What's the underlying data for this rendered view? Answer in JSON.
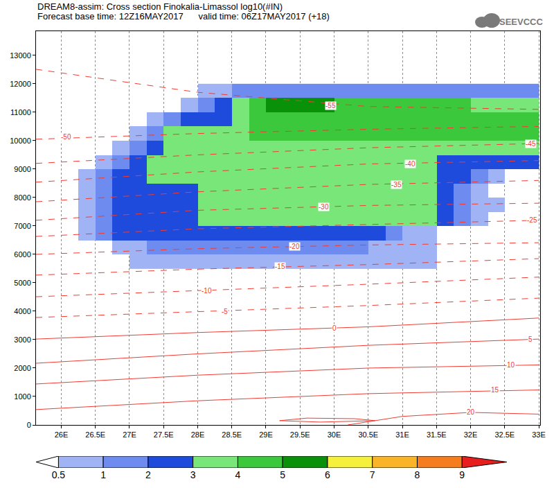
{
  "chart_data": {
    "type": "heatmap",
    "title": "DREAM8-assim: Cross section Finokalia-Limassol log10(#IN)",
    "subtitle": "Forecast base time: 12Z16MAY2017      valid time: 06Z17MAY2017 (+18)",
    "logo": "SEEVCCC",
    "xlim": [
      25.63,
      33.02
    ],
    "ylim": [
      0,
      13850
    ],
    "xticks": [
      {
        "value": 26,
        "label": "26E"
      },
      {
        "value": 26.5,
        "label": "26.5E"
      },
      {
        "value": 27,
        "label": "27E"
      },
      {
        "value": 27.5,
        "label": "27.5E"
      },
      {
        "value": 28,
        "label": "28E"
      },
      {
        "value": 28.5,
        "label": "28.5E"
      },
      {
        "value": 29,
        "label": "29E"
      },
      {
        "value": 29.5,
        "label": "29.5E"
      },
      {
        "value": 30,
        "label": "30E"
      },
      {
        "value": 30.5,
        "label": "30.5E"
      },
      {
        "value": 31,
        "label": "31E"
      },
      {
        "value": 31.5,
        "label": "31.5E"
      },
      {
        "value": 32,
        "label": "32E"
      },
      {
        "value": 32.5,
        "label": "32.5E"
      },
      {
        "value": 33,
        "label": "33E"
      }
    ],
    "yticks": [
      0,
      1000,
      2000,
      3000,
      4000,
      5000,
      6000,
      7000,
      8000,
      9000,
      10000,
      11000,
      12000,
      13000
    ],
    "grid": "x",
    "colorbar_ticks": [
      0.5,
      1,
      2,
      3,
      4,
      5,
      6,
      7,
      8,
      9
    ],
    "colors": [
      "#ffffff",
      "#a0b4f5",
      "#6e8cf0",
      "#1e4bdc",
      "#78e678",
      "#3cc83c",
      "#0a910a",
      "#f5f03c",
      "#fab428",
      "#f57d1e",
      "#e61e1e"
    ],
    "x": [
      26.125,
      26.375,
      26.625,
      26.875,
      27.125,
      27.375,
      27.625,
      27.875,
      28.125,
      28.375,
      28.625,
      28.875,
      29.125,
      29.375,
      29.625,
      29.875,
      30.125,
      30.375,
      30.625,
      30.875,
      31.125,
      31.375,
      31.625,
      31.875,
      32.125,
      32.375,
      32.625,
      32.875
    ],
    "y": [
      5750,
      6250,
      6750,
      7250,
      7750,
      8250,
      8750,
      9250,
      9750,
      10250,
      10750,
      11250,
      11750
    ],
    "cells": [
      [
        null,
        null,
        null,
        null,
        0.7,
        0.7,
        0.7,
        0.7,
        0.7,
        0.7,
        0.7,
        0.7,
        0.7,
        0.7,
        0.7,
        0.7,
        0.7,
        0.7,
        0.7,
        0.7,
        0.7,
        0.7,
        null,
        null,
        null,
        null,
        null,
        null
      ],
      [
        null,
        null,
        null,
        0.7,
        0.7,
        1.5,
        1.5,
        1.5,
        1.5,
        1.5,
        1.5,
        1.5,
        1.5,
        1.5,
        1.5,
        1.5,
        1.5,
        1.5,
        0.7,
        0.7,
        0.7,
        0.7,
        null,
        null,
        null,
        null,
        null,
        null
      ],
      [
        null,
        0.7,
        1.5,
        2.5,
        2.5,
        2.5,
        2.5,
        2.5,
        2.5,
        2.5,
        2.5,
        2.5,
        2.5,
        2.5,
        2.5,
        2.5,
        2.5,
        2.5,
        2.5,
        1.5,
        0.7,
        0.7,
        null,
        null,
        null,
        null,
        null,
        null
      ],
      [
        null,
        0.7,
        1.5,
        2.5,
        2.5,
        2.5,
        2.5,
        2.5,
        3.5,
        3.5,
        3.5,
        3.5,
        3.5,
        3.5,
        3.5,
        3.5,
        3.5,
        3.5,
        3.5,
        3.5,
        3.5,
        3.5,
        2.5,
        1.5,
        0.7,
        null,
        null,
        null
      ],
      [
        null,
        0.7,
        1.5,
        2.5,
        2.5,
        2.5,
        2.5,
        2.5,
        3.5,
        3.5,
        3.5,
        3.5,
        3.5,
        3.5,
        3.5,
        3.5,
        3.5,
        3.5,
        3.5,
        3.5,
        3.5,
        3.5,
        2.5,
        1.5,
        0.7,
        0.7,
        null,
        null
      ],
      [
        null,
        0.7,
        1.5,
        2.5,
        2.5,
        2.5,
        2.5,
        2.5,
        3.5,
        3.5,
        3.5,
        3.5,
        3.5,
        3.5,
        3.5,
        3.5,
        3.5,
        3.5,
        3.5,
        3.5,
        3.5,
        3.5,
        2.5,
        1.5,
        0.7,
        null,
        null,
        null
      ],
      [
        null,
        0.7,
        1.5,
        2.5,
        2.5,
        3.5,
        3.5,
        3.5,
        3.5,
        3.5,
        3.5,
        3.5,
        3.5,
        3.5,
        3.5,
        3.5,
        3.5,
        3.5,
        3.5,
        3.5,
        3.5,
        3.5,
        2.5,
        2.5,
        1.5,
        0.7,
        null,
        null
      ],
      [
        null,
        null,
        0.7,
        1.5,
        2.5,
        3.5,
        3.5,
        3.5,
        3.5,
        3.5,
        3.5,
        3.5,
        3.5,
        3.5,
        3.5,
        3.5,
        3.5,
        3.5,
        3.5,
        3.5,
        3.5,
        3.5,
        2.5,
        2.5,
        2.5,
        2.5,
        2.5,
        2.5
      ],
      [
        null,
        null,
        null,
        0.7,
        1.5,
        2.5,
        3.5,
        3.5,
        3.5,
        3.5,
        3.5,
        3.5,
        3.5,
        3.5,
        3.5,
        3.5,
        3.5,
        3.5,
        3.5,
        3.5,
        3.5,
        3.5,
        3.5,
        3.5,
        3.5,
        3.5,
        3.5,
        3.5
      ],
      [
        null,
        null,
        null,
        null,
        0.7,
        1.5,
        3.5,
        3.5,
        3.5,
        3.5,
        3.5,
        4.5,
        4.5,
        4.5,
        4.5,
        4.5,
        4.5,
        4.5,
        4.5,
        4.5,
        4.5,
        4.5,
        4.5,
        4.5,
        4.5,
        4.5,
        4.5,
        4.5
      ],
      [
        null,
        null,
        null,
        null,
        null,
        0.7,
        1.5,
        2.5,
        2.5,
        2.5,
        3.5,
        4.5,
        4.5,
        4.5,
        4.5,
        4.5,
        4.5,
        4.5,
        4.5,
        4.5,
        4.5,
        4.5,
        4.5,
        4.5,
        4.5,
        4.5,
        4.5,
        4.5
      ],
      [
        null,
        null,
        null,
        null,
        null,
        null,
        null,
        0.7,
        1.5,
        2.5,
        3.5,
        4.5,
        5.3,
        5.3,
        5.3,
        5.3,
        4.5,
        4.5,
        4.5,
        4.5,
        4.5,
        4.5,
        4.5,
        4.5,
        3.5,
        3.5,
        3.5,
        3.5
      ],
      [
        null,
        null,
        null,
        null,
        null,
        null,
        null,
        null,
        0.7,
        0.7,
        1.5,
        1.5,
        1.5,
        1.5,
        1.5,
        1.5,
        1.5,
        1.5,
        1.5,
        1.5,
        1.5,
        1.5,
        1.5,
        1.5,
        1.5,
        1.5,
        1.5,
        1.5
      ]
    ],
    "series": [
      {
        "level": -55,
        "color": "#f03c32",
        "line_style": "dashed",
        "x": [
          25.63,
          28,
          30.5,
          33
        ],
        "values": [
          12510,
          11700,
          11200,
          11100
        ],
        "label_at": [
          29.95,
          11240
        ]
      },
      {
        "level": -50,
        "color": "#f03c32",
        "line_style": "dashed",
        "x": [
          25.63,
          28,
          30.5,
          33
        ],
        "values": [
          10050,
          10250,
          10400,
          10500
        ],
        "label_at": [
          26.07,
          10120
        ]
      },
      {
        "level": -45,
        "color": "#f03c32",
        "line_style": "dashed",
        "x": [
          25.63,
          28,
          30.5,
          33
        ],
        "values": [
          9200,
          9500,
          9750,
          9900
        ],
        "label_at": [
          32.88,
          9880
        ]
      },
      {
        "level": -40,
        "color": "#f03c32",
        "line_style": "dashed",
        "x": [
          25.63,
          28,
          30.5,
          33
        ],
        "values": [
          8540,
          8900,
          9180,
          9300
        ],
        "label_at": [
          31.12,
          9170
        ]
      },
      {
        "level": -35,
        "color": "#f03c32",
        "line_style": "dashed",
        "x": [
          25.63,
          28,
          30.5,
          33
        ],
        "values": [
          7850,
          8200,
          8460,
          8600
        ],
        "label_at": [
          30.91,
          8440
        ]
      },
      {
        "level": -30,
        "color": "#f03c32",
        "line_style": "dashed",
        "x": [
          25.63,
          28,
          30.5,
          33
        ],
        "values": [
          7200,
          7550,
          7720,
          7800
        ],
        "label_at": [
          29.85,
          7680
        ]
      },
      {
        "level": -25,
        "color": "#f03c32",
        "line_style": "dashed",
        "x": [
          25.63,
          28,
          30.5,
          33
        ],
        "values": [
          6630,
          6900,
          7050,
          7200
        ],
        "label_at": [
          32.9,
          7200
        ]
      },
      {
        "level": -20,
        "color": "#f03c32",
        "line_style": "dashed",
        "x": [
          25.63,
          28,
          30.5,
          33
        ],
        "values": [
          6000,
          6200,
          6330,
          6410
        ],
        "label_at": [
          29.42,
          6270
        ]
      },
      {
        "level": -15,
        "color": "#f03c32",
        "line_style": "dashed",
        "x": [
          25.63,
          28,
          30.5,
          33
        ],
        "values": [
          5270,
          5480,
          5640,
          5850
        ],
        "label_at": [
          29.21,
          5560
        ]
      },
      {
        "level": -10,
        "color": "#f03c32",
        "line_style": "dashed",
        "x": [
          25.63,
          28,
          30.5,
          33
        ],
        "values": [
          4510,
          4720,
          4950,
          5200
        ],
        "label_at": [
          28.13,
          4730
        ]
      },
      {
        "level": -5,
        "color": "#f03c32",
        "line_style": "dashed",
        "x": [
          25.63,
          28,
          30.5,
          33
        ],
        "values": [
          3780,
          3980,
          4200,
          4460
        ],
        "label_at": [
          28.4,
          3980
        ]
      },
      {
        "level": 0,
        "color": "#f03c32",
        "line_style": "solid",
        "x": [
          25.63,
          28,
          30.5,
          33
        ],
        "values": [
          3020,
          3250,
          3450,
          3760
        ],
        "label_at": [
          30.0,
          3410
        ]
      },
      {
        "level": 5,
        "color": "#f03c32",
        "line_style": "solid",
        "x": [
          25.63,
          28,
          30.5,
          33
        ],
        "values": [
          2170,
          2500,
          2800,
          3020
        ],
        "label_at": [
          32.88,
          3000
        ]
      },
      {
        "level": 10,
        "color": "#f03c32",
        "line_style": "solid",
        "x": [
          25.63,
          28,
          30.5,
          33
        ],
        "values": [
          1440,
          1750,
          2000,
          2110
        ],
        "label_at": [
          32.59,
          2100
        ]
      },
      {
        "level": 15,
        "color": "#f03c32",
        "line_style": "solid",
        "x": [
          25.63,
          28,
          30.5,
          33
        ],
        "values": [
          540,
          850,
          1100,
          1230
        ],
        "label_at": [
          32.36,
          1220
        ]
      },
      {
        "level": 20,
        "color": "#f03c32",
        "line_style": "solid",
        "x": [
          30.2,
          31,
          32,
          33
        ],
        "values": [
          0,
          300,
          440,
          380
        ],
        "label_at": [
          32.0,
          440
        ]
      },
      {
        "level": 20,
        "color": "#f03c32",
        "line_style": "solid",
        "x": [
          29.2,
          29.6,
          30.3,
          30.6,
          29.8,
          29.2
        ],
        "values": [
          150,
          240,
          220,
          150,
          100,
          150
        ]
      }
    ]
  }
}
